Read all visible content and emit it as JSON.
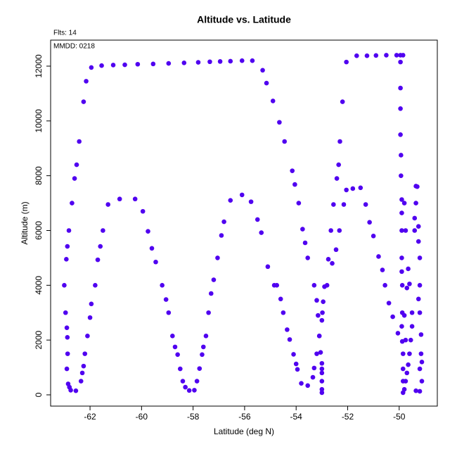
{
  "chart_data": {
    "type": "scatter",
    "title": "Altitude vs. Latitude",
    "subtitle": "Flts: 14",
    "annotation": "MMDD: 0218",
    "xlabel": "Latitude (deg N)",
    "ylabel": "Altitude (m)",
    "color": "#5000f0",
    "xlim": [
      -63.53,
      -48.52
    ],
    "ylim": [
      -411,
      12950
    ],
    "xticks": [
      -62,
      -60,
      -58,
      -56,
      -54,
      -52,
      -50
    ],
    "yticks": [
      0,
      2000,
      4000,
      6000,
      8000,
      10000,
      12000
    ],
    "x": [
      -63.0,
      -62.95,
      -62.9,
      -62.88,
      -62.87,
      -62.9,
      -62.85,
      -62.8,
      -62.75,
      -62.92,
      -62.88,
      -62.82,
      -62.7,
      -62.6,
      -62.52,
      -62.42,
      -62.25,
      -62.15,
      -61.95,
      -61.55,
      -61.1,
      -60.65,
      -60.15,
      -59.55,
      -58.95,
      -58.35,
      -57.8,
      -57.35,
      -56.95,
      -56.55,
      -56.1,
      -55.7,
      -55.3,
      -55.15,
      -54.9,
      -54.65,
      -54.45,
      -54.15,
      -54.05,
      -53.9,
      -53.75,
      -53.65,
      -53.55,
      -53.3,
      -53.2,
      -53.15,
      -53.1,
      -53.05,
      -53.0,
      -53.0,
      -53.0,
      -53.0,
      -53.0,
      -53.0,
      -54.75,
      -54.6,
      -54.5,
      -54.35,
      -54.25,
      -54.1,
      -54.0,
      -53.95,
      -53.8,
      -53.55,
      -53.35,
      -53.3,
      -53.2,
      -53.1,
      -53.0,
      -52.98,
      -52.95,
      -52.9,
      -52.8,
      -52.75,
      -52.65,
      -52.6,
      -52.55,
      -52.45,
      -52.42,
      -52.35,
      -52.3,
      -52.32,
      -52.2,
      -52.15,
      -52.05,
      -52.05,
      -51.8,
      -51.5,
      -51.65,
      -51.25,
      -50.9,
      -50.5,
      -50.1,
      -49.95,
      -49.85,
      -51.3,
      -51.15,
      -51.0,
      -50.8,
      -50.65,
      -50.55,
      -50.4,
      -50.25,
      -50.05,
      -49.95,
      -49.95,
      -49.95,
      -49.95,
      -49.93,
      -49.93,
      -49.9,
      -49.9,
      -49.9,
      -49.9,
      -49.9,
      -49.88,
      -49.88,
      -49.9,
      -49.88,
      -49.85,
      -49.85,
      -49.85,
      -49.85,
      -49.8,
      -49.75,
      -49.7,
      -49.65,
      -49.6,
      -49.5,
      -49.5,
      -49.55,
      -49.6,
      -49.65,
      -49.7,
      -49.75,
      -49.8,
      -49.8,
      -49.75,
      -49.35,
      -49.3,
      -49.35,
      -49.4,
      -49.4,
      -49.25,
      -49.25,
      -49.2,
      -49.2,
      -49.25,
      -49.2,
      -49.15,
      -49.15,
      -49.12,
      -49.2,
      -49.12,
      -49.35,
      -49.2,
      -62.55,
      -62.35,
      -62.3,
      -62.25,
      -62.2,
      -62.1,
      -62.0,
      -61.95,
      -61.8,
      -61.7,
      -61.6,
      -61.5,
      -61.3,
      -60.85,
      -60.25,
      -59.95,
      -59.75,
      -59.6,
      -59.45,
      -59.2,
      -59.05,
      -58.95,
      -58.8,
      -58.7,
      -58.6,
      -58.5,
      -58.4,
      -58.3,
      -58.15,
      -57.95,
      -57.85,
      -57.75,
      -57.65,
      -57.6,
      -57.5,
      -57.4,
      -57.3,
      -57.2,
      -57.05,
      -56.9,
      -56.8,
      -56.55,
      -56.1,
      -55.75,
      -55.5,
      -55.35,
      -55.1,
      -54.85
    ],
    "values": [
      4000,
      3000,
      2450,
      2100,
      1500,
      950,
      400,
      280,
      170,
      4950,
      5420,
      6000,
      7000,
      7900,
      8400,
      9250,
      10700,
      11450,
      11950,
      12020,
      12040,
      12050,
      12070,
      12080,
      12100,
      12120,
      12140,
      12160,
      12170,
      12180,
      12200,
      12200,
      11850,
      11380,
      10730,
      9950,
      9250,
      8180,
      7680,
      7000,
      6050,
      5550,
      5000,
      4000,
      3450,
      2900,
      2150,
      1550,
      1150,
      950,
      800,
      500,
      200,
      80,
      4000,
      3500,
      3000,
      2380,
      2020,
      1480,
      1130,
      930,
      420,
      340,
      640,
      980,
      1500,
      2150,
      2720,
      3000,
      3400,
      3950,
      4000,
      4950,
      6000,
      4800,
      6950,
      5300,
      7900,
      8400,
      9250,
      6000,
      10700,
      6950,
      12150,
      7480,
      7530,
      7560,
      12380,
      12380,
      12390,
      12400,
      12400,
      12400,
      12400,
      6950,
      6300,
      5800,
      5050,
      4560,
      4000,
      3350,
      2850,
      2250,
      12150,
      11200,
      10450,
      9500,
      8750,
      8000,
      7130,
      6640,
      6000,
      5000,
      4500,
      4000,
      3000,
      2500,
      1950,
      1500,
      950,
      500,
      80,
      7000,
      6000,
      3900,
      4600,
      4050,
      3000,
      2500,
      2000,
      1500,
      1100,
      800,
      500,
      200,
      2900,
      2000,
      7620,
      7600,
      7000,
      6450,
      6000,
      6150,
      5600,
      5000,
      4000,
      3500,
      3000,
      2200,
      1500,
      1200,
      950,
      500,
      150,
      130,
      150,
      500,
      800,
      1050,
      1500,
      2150,
      2820,
      3320,
      4000,
      4930,
      5420,
      6000,
      6950,
      7150,
      7150,
      6700,
      5970,
      5350,
      4850,
      4000,
      3480,
      3000,
      2150,
      1750,
      1470,
      950,
      500,
      280,
      160,
      170,
      500,
      960,
      1470,
      1750,
      2150,
      3000,
      3700,
      4200,
      5000,
      5820,
      6320,
      7100,
      7300,
      7050,
      6400,
      5920,
      4680,
      4000
    ]
  }
}
